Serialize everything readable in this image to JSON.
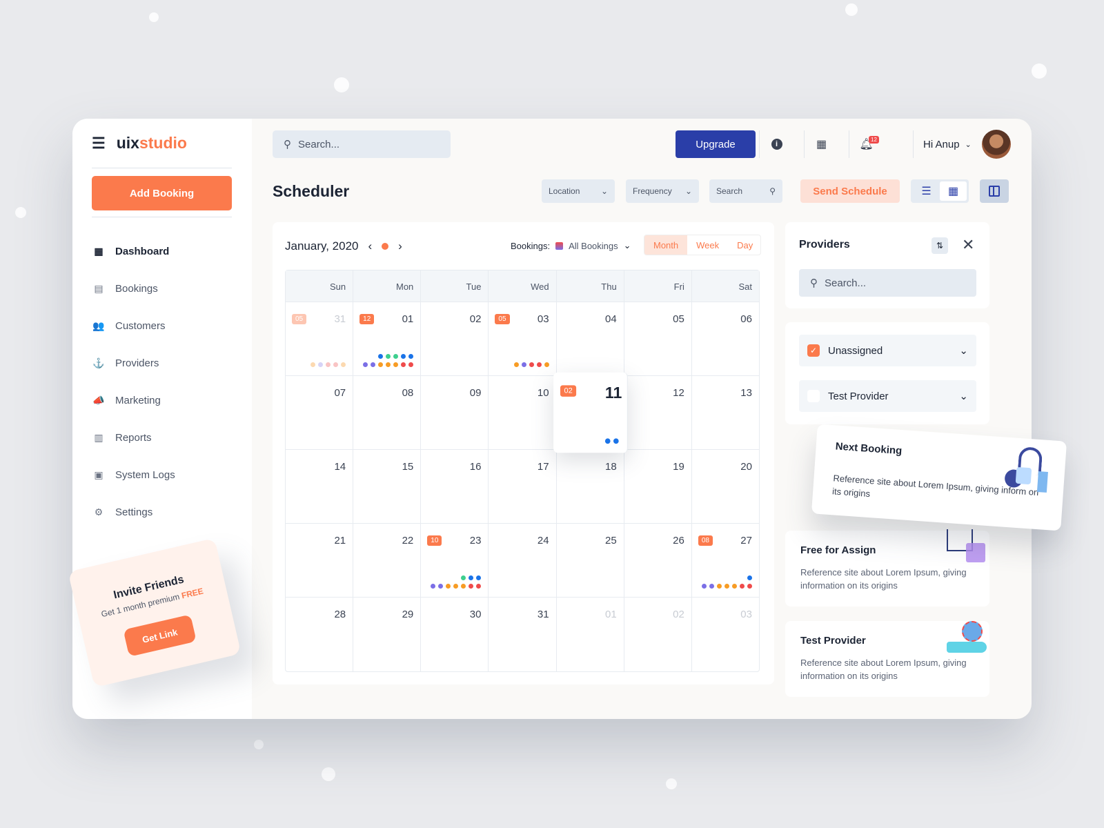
{
  "brand": {
    "part1": "uix",
    "part2": "studio"
  },
  "sidebar": {
    "add_booking": "Add Booking",
    "items": [
      {
        "label": "Dashboard",
        "icon": "dashboard-icon",
        "glyph": "▦",
        "active": true
      },
      {
        "label": "Bookings",
        "icon": "calendar-icon",
        "glyph": "▤"
      },
      {
        "label": "Customers",
        "icon": "users-icon",
        "glyph": "👥"
      },
      {
        "label": "Providers",
        "icon": "provider-icon",
        "glyph": "⚓"
      },
      {
        "label": "Marketing",
        "icon": "megaphone-icon",
        "glyph": "📣"
      },
      {
        "label": "Reports",
        "icon": "bar-chart-icon",
        "glyph": "▥"
      },
      {
        "label": "System Logs",
        "icon": "log-icon",
        "glyph": "▣"
      },
      {
        "label": "Settings",
        "icon": "gear-icon",
        "glyph": "⚙"
      }
    ]
  },
  "invite": {
    "title": "Invite Friends",
    "text": "Get 1 month premium",
    "free": "FREE",
    "button": "Get Link"
  },
  "topbar": {
    "search_placeholder": "Search...",
    "upgrade": "Upgrade",
    "notification_count": "12",
    "greeting": "Hi Anup"
  },
  "page": {
    "title": "Scheduler",
    "location": "Location",
    "frequency": "Frequency",
    "search": "Search",
    "send": "Send Schedule"
  },
  "calendar": {
    "month": "January, 2020",
    "bookings_label": "Bookings:",
    "bookings_value": "All Bookings",
    "modes": [
      "Month",
      "Week",
      "Day"
    ],
    "active_mode": "Month",
    "weekdays": [
      "Sun",
      "Mon",
      "Tue",
      "Wed",
      "Thu",
      "Fri",
      "Sat"
    ],
    "colors": {
      "p": "#7b6fe6",
      "o": "#f79c25",
      "r": "#ef4b4b",
      "b": "#1a73e8",
      "g": "#3ecf8e",
      "pe": "#fcd9b0",
      "la": "#d6d3f7",
      "pk": "#f9c4c4"
    },
    "weeks": [
      [
        {
          "d": "31",
          "muted": true,
          "badge": "05",
          "dots": [
            [],
            [
              "pe",
              "la",
              "pk",
              "pk",
              "pe"
            ]
          ]
        },
        {
          "d": "01",
          "badge": "12",
          "dots": [
            [
              "b",
              "g",
              "g",
              "b",
              "b"
            ],
            [
              "p",
              "p",
              "o",
              "o",
              "o",
              "r",
              "r"
            ]
          ]
        },
        {
          "d": "02"
        },
        {
          "d": "03",
          "badge": "05",
          "dots": [
            [],
            [
              "o",
              "p",
              "r",
              "r",
              "o"
            ]
          ]
        },
        {
          "d": "04"
        },
        {
          "d": "05"
        },
        {
          "d": "06"
        }
      ],
      [
        {
          "d": "07"
        },
        {
          "d": "08"
        },
        {
          "d": "09"
        },
        {
          "d": "10"
        },
        {
          "d": "11",
          "badge": "02",
          "highlight": true,
          "dots": [
            [
              "b",
              "b"
            ]
          ]
        },
        {
          "d": "12"
        },
        {
          "d": "13"
        }
      ],
      [
        {
          "d": "14"
        },
        {
          "d": "15"
        },
        {
          "d": "16"
        },
        {
          "d": "17"
        },
        {
          "d": "18"
        },
        {
          "d": "19"
        },
        {
          "d": "20"
        }
      ],
      [
        {
          "d": "21"
        },
        {
          "d": "22"
        },
        {
          "d": "23",
          "badge": "10",
          "dots": [
            [
              "g",
              "b",
              "b"
            ],
            [
              "p",
              "p",
              "o",
              "o",
              "o",
              "r",
              "r"
            ]
          ]
        },
        {
          "d": "24"
        },
        {
          "d": "25"
        },
        {
          "d": "26"
        },
        {
          "d": "27",
          "badge": "08",
          "dots": [
            [
              "b"
            ],
            [
              "p",
              "p",
              "o",
              "o",
              "o",
              "r",
              "r"
            ]
          ]
        }
      ],
      [
        {
          "d": "28"
        },
        {
          "d": "29"
        },
        {
          "d": "30"
        },
        {
          "d": "31"
        },
        {
          "d": "01",
          "muted": true
        },
        {
          "d": "02",
          "muted": true
        },
        {
          "d": "03",
          "muted": true
        }
      ]
    ]
  },
  "providers": {
    "title": "Providers",
    "search_placeholder": "Search...",
    "filters": [
      {
        "label": "Unassigned",
        "checked": true
      },
      {
        "label": "Test Provider",
        "checked": false
      }
    ],
    "cards": [
      {
        "title": "Next Booking",
        "text": "Reference site about Lorem Ipsum, giving inform on its origins"
      },
      {
        "title": "Free for Assign",
        "text": "Reference site about Lorem Ipsum, giving information on its origins"
      },
      {
        "title": "Test Provider",
        "text": "Reference site about Lorem Ipsum, giving information on its origins"
      }
    ]
  }
}
